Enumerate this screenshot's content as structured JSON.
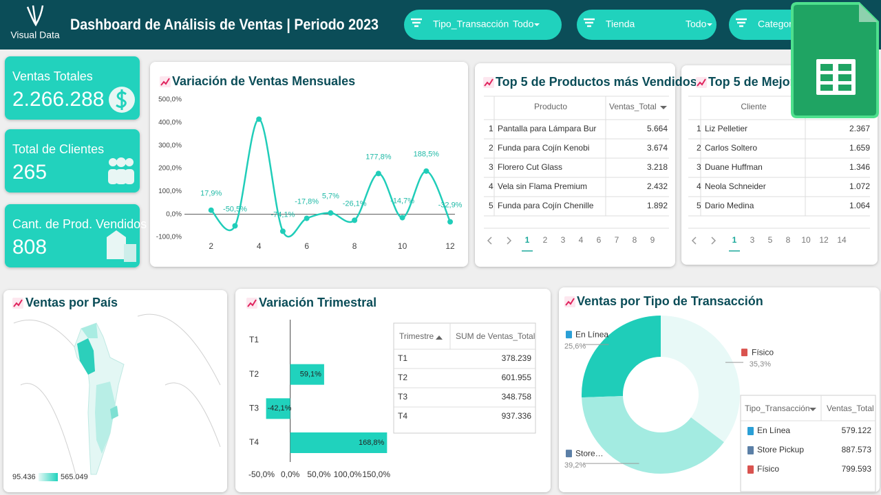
{
  "header": {
    "logo": "Visual Data",
    "title": "Dashboard de Análisis de Ventas | Periodo 2023",
    "filters": [
      {
        "label": "Tipo_Transacción",
        "value": "Todo"
      },
      {
        "label": "Tienda",
        "value": "Todo"
      },
      {
        "label": "Categorí"
      }
    ]
  },
  "kpis": [
    {
      "label": "Ventas Totales",
      "value": "2.266.288"
    },
    {
      "label": "Total de Clientes",
      "value": "265"
    },
    {
      "label": "Cant. de Prod. Vendidos",
      "value": "808"
    }
  ],
  "tables": [
    {
      "title": "Top 5 de Productos más Vendidos",
      "columns": [
        "Producto",
        "Ventas_Total"
      ],
      "rows": [
        [
          "1",
          "Pantalla para Lámpara Bur",
          "5.664"
        ],
        [
          "2",
          "Funda para Cojín Kenobi",
          "3.674"
        ],
        [
          "3",
          "Florero Cut Glass",
          "3.218"
        ],
        [
          "4",
          "Vela sin Flama Premium",
          "2.432"
        ],
        [
          "5",
          "Funda para Cojín Chenille",
          "1.892"
        ]
      ],
      "pages": [
        "1",
        "2",
        "3",
        "4",
        "6",
        "7",
        "8",
        "9"
      ]
    },
    {
      "title": "Top 5 de Mejores",
      "columns": [
        "Cliente"
      ],
      "rows": [
        [
          "1",
          "Liz Pelletier",
          "2.367"
        ],
        [
          "2",
          "Carlos Soltero",
          "1.659"
        ],
        [
          "3",
          "Duane Huffman",
          "1.346"
        ],
        [
          "4",
          "Neola Schneider",
          "1.072"
        ],
        [
          "5",
          "Dario Medina",
          "1.064"
        ]
      ],
      "pages": [
        "1",
        "3",
        "5",
        "8",
        "10",
        "12",
        "14"
      ]
    }
  ],
  "map": {
    "title": "Ventas por País",
    "legend": [
      "95.436",
      "565.049"
    ]
  },
  "quarter_table": {
    "columns": [
      "Trimestre",
      "SUM de Ventas_Total"
    ],
    "rows": [
      [
        "T1",
        "378.239"
      ],
      [
        "T2",
        "601.955"
      ],
      [
        "T3",
        "348.758"
      ],
      [
        "T4",
        "937.336"
      ]
    ]
  },
  "transaction_table": {
    "columns": [
      "Tipo_Transacción",
      "Ventas_Total"
    ],
    "rows": [
      [
        "En Línea",
        "579.122"
      ],
      [
        "Store Pickup",
        "887.573"
      ],
      [
        "Físico",
        "799.593"
      ]
    ]
  },
  "chart_data": [
    {
      "type": "line",
      "title": "Variación de Ventas Mensuales",
      "color": "#20cdb9",
      "x": [
        2,
        3,
        4,
        5,
        6,
        7,
        8,
        9,
        10,
        11,
        12
      ],
      "values": [
        17.9,
        -50.5,
        415,
        -74.1,
        -17.8,
        5.7,
        -26.1,
        177.8,
        -14.7,
        188.5,
        -32.9
      ],
      "value_labels": [
        "17,9%",
        "-50,5%",
        null,
        "-74,1%",
        "-17,8%",
        "5,7%",
        "-26,1%",
        "177,8%",
        "-14,7%",
        "188,5%",
        "-32,9%"
      ],
      "xlim": [
        1,
        12.2
      ],
      "xticks": [
        2,
        4,
        6,
        8,
        10,
        12
      ],
      "ylim": [
        -100,
        500
      ],
      "yticks": [
        {
          "value": 500,
          "label": "500,0%"
        },
        {
          "value": 400,
          "label": "400,0%"
        },
        {
          "value": 300,
          "label": "300,0%"
        },
        {
          "value": 200,
          "label": "200,0%"
        },
        {
          "value": 100,
          "label": "100,0%"
        },
        {
          "value": 0,
          "label": "0,0%"
        },
        {
          "value": -100,
          "label": "-100,0%"
        }
      ]
    },
    {
      "type": "bar",
      "orientation": "horizontal",
      "title": "Variación Trimestral",
      "color": "#20d2bd",
      "categories": [
        "T1",
        "T2",
        "T3",
        "T4"
      ],
      "values": [
        null,
        59.1,
        -42.1,
        168.8
      ],
      "value_labels": [
        null,
        "59,1%",
        "-42,1%",
        "168,8%"
      ],
      "xlim": [
        -50,
        172
      ],
      "xticks": [
        {
          "value": -50,
          "label": "-50,0%"
        },
        {
          "value": 0,
          "label": "0,0%"
        },
        {
          "value": 50,
          "label": "50,0%"
        },
        {
          "value": 100,
          "label": "100,0%"
        },
        {
          "value": 150,
          "label": "150,0%"
        }
      ]
    },
    {
      "type": "pie",
      "donut": true,
      "title": "Ventas por Tipo de Transacción",
      "categories": [
        "En Línea",
        "Físico",
        "Store…"
      ],
      "values": [
        25.6,
        35.3,
        39.2
      ],
      "value_labels": [
        "25,6%",
        "35,3%",
        "39,2%"
      ],
      "colors": [
        "#1fcdb9",
        "#e8f9f7",
        "#a3ebe1"
      ]
    }
  ]
}
